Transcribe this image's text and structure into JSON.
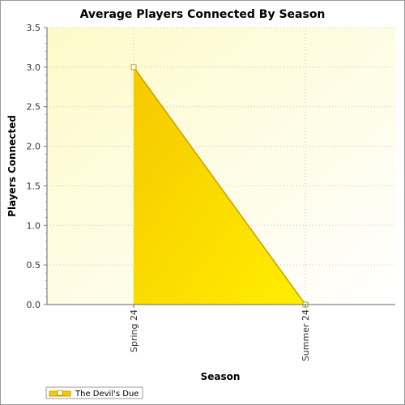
{
  "chart_data": {
    "type": "area",
    "title": "Average Players Connected By Season",
    "xlabel": "Season",
    "ylabel": "Players Connected",
    "categories": [
      "Spring 24",
      "Summer 24"
    ],
    "series": [
      {
        "name": "The Devil's Due",
        "values": [
          3.0,
          0.0
        ]
      }
    ],
    "ylim": [
      0,
      3.5
    ],
    "y_ticks": [
      "0.0",
      "0.5",
      "1.0",
      "1.5",
      "2.0",
      "2.5",
      "3.0",
      "3.5"
    ],
    "grid": true,
    "legend_position": "bottom-left",
    "colors": {
      "plot_bg_light": "#ffffee",
      "plot_bg_warm": "#fdfac8",
      "area_fill_light": "#ffee00",
      "area_fill_dark": "#f6c800",
      "series_line": "#c8a000",
      "grid": "#c8c8c8"
    }
  }
}
